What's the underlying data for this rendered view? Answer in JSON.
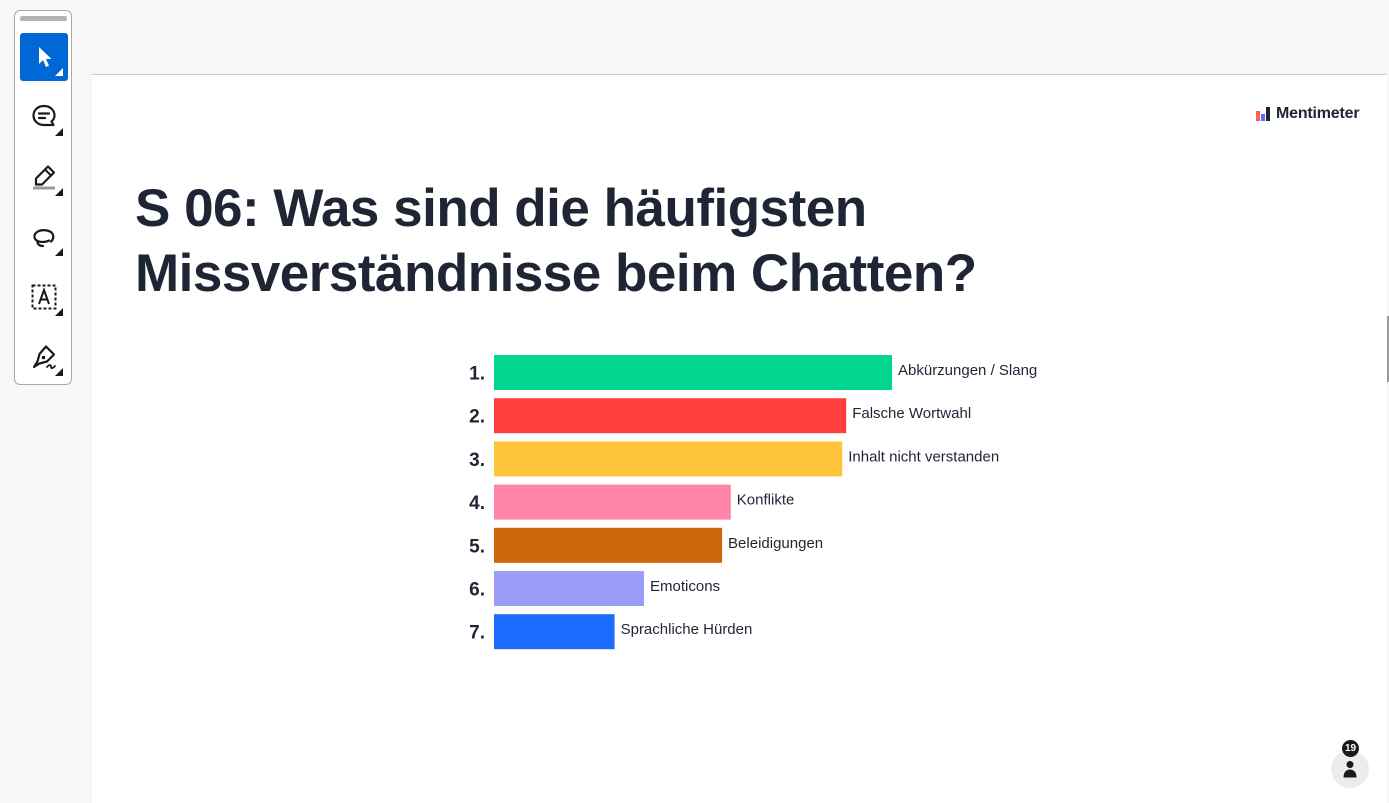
{
  "brand": {
    "name": "Mentimeter"
  },
  "slide": {
    "title_line1": "S 06: Was sind die häufigsten",
    "title_line2": "Missverständnisse beim Chatten?"
  },
  "toolbar": {
    "tools": [
      {
        "name": "select-tool",
        "icon": "cursor-arrow-icon",
        "active": true
      },
      {
        "name": "comment-tool",
        "icon": "speech-bubble-icon",
        "active": false
      },
      {
        "name": "highlight-tool",
        "icon": "highlighter-icon",
        "active": false
      },
      {
        "name": "lasso-tool",
        "icon": "lasso-icon",
        "active": false
      },
      {
        "name": "text-select-tool",
        "icon": "text-box-icon",
        "active": false
      },
      {
        "name": "sign-tool",
        "icon": "pen-sign-icon",
        "active": false
      }
    ]
  },
  "participants": {
    "count": "19"
  },
  "chart_data": {
    "type": "bar",
    "orientation": "horizontal",
    "categories": [
      "Abkürzungen / Slang",
      "Falsche Wortwahl",
      "Inhalt nicht verstanden",
      "Konflikte",
      "Beleidigungen",
      "Emoticons",
      "Sprachliche Hürden"
    ],
    "ranks": [
      "1.",
      "2.",
      "3.",
      "4.",
      "5.",
      "6.",
      "7."
    ],
    "values": [
      100,
      88.5,
      87.5,
      59.5,
      57.3,
      37.7,
      30.3
    ],
    "colors": [
      "#00d68f",
      "#ff403e",
      "#ffc53a",
      "#ff85a9",
      "#cd650b",
      "#9b9cf7",
      "#1b6cff"
    ],
    "xlim": [
      0,
      100
    ],
    "grid": false,
    "legend": "none"
  }
}
